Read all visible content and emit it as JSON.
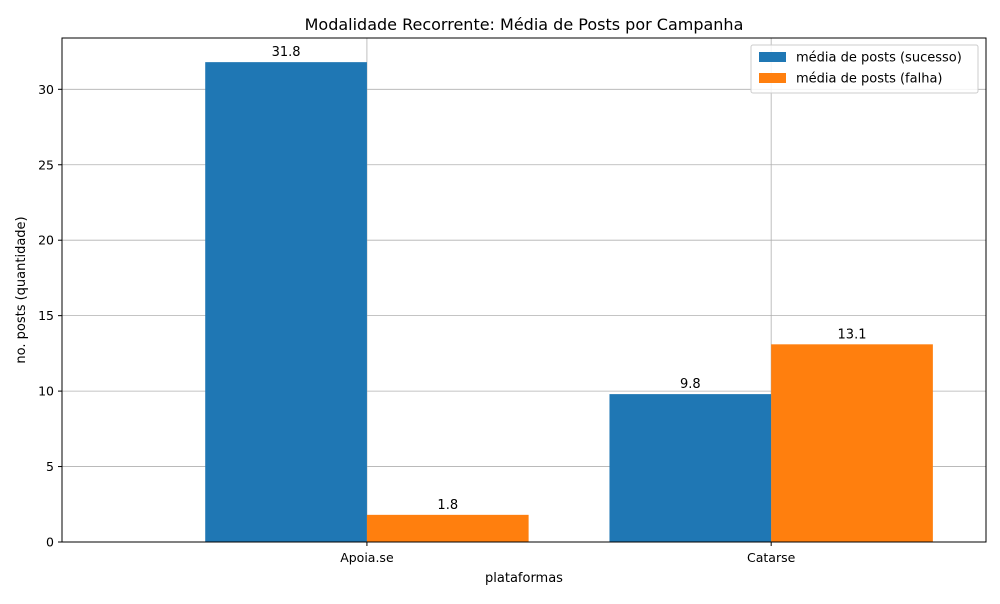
{
  "chart_data": {
    "type": "bar",
    "title": "Modalidade Recorrente: Média de Posts por Campanha",
    "xlabel": "plataformas",
    "ylabel": "no. posts (quantidade)",
    "categories": [
      "Apoia.se",
      "Catarse"
    ],
    "ylim": [
      0,
      33.4
    ],
    "yticks": [
      0,
      5,
      10,
      15,
      20,
      25,
      30
    ],
    "grid": true,
    "legend_position": "top-right",
    "series": [
      {
        "name": "média de posts (sucesso)",
        "color": "#1f77b4",
        "values": [
          31.8,
          9.8
        ],
        "labels": [
          "31.8",
          "9.8"
        ]
      },
      {
        "name": "média de posts (falha)",
        "color": "#ff7f0e",
        "values": [
          1.8,
          13.1
        ],
        "labels": [
          "1.8",
          "13.1"
        ]
      }
    ]
  }
}
